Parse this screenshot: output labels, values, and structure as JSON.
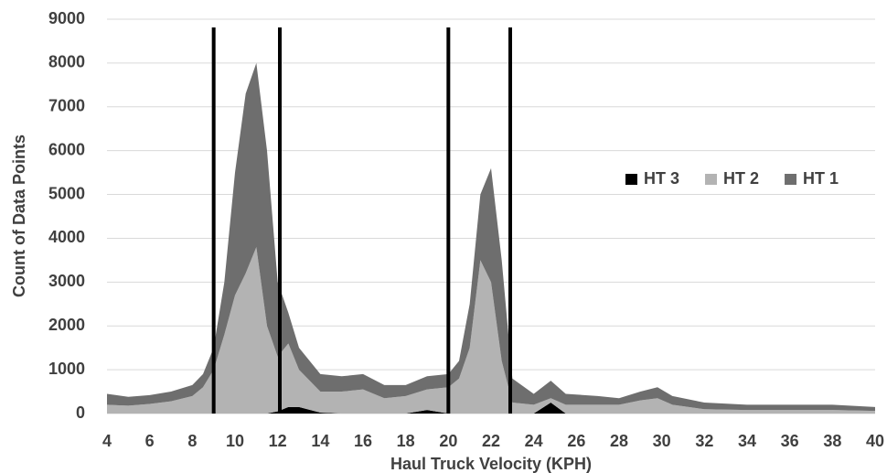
{
  "chart_data": {
    "type": "area",
    "stacked": true,
    "x_label": "Haul Truck Velocity (KPH)",
    "y_label": "Count of Data Points",
    "x": [
      4,
      5,
      6,
      7,
      8,
      8.5,
      9,
      9.5,
      10,
      10.5,
      11,
      11.5,
      12,
      12.5,
      13,
      14,
      15,
      16,
      17,
      18,
      19,
      20,
      20.5,
      21,
      21.5,
      22,
      22.5,
      23,
      24,
      24.8,
      25.5,
      27,
      28,
      29,
      29.8,
      30.5,
      32,
      34,
      36,
      38,
      40
    ],
    "series": [
      {
        "name": "HT 3",
        "color": "#000000",
        "values": [
          0,
          0,
          0,
          0,
          0,
          0,
          0,
          0,
          0,
          0,
          0,
          0,
          50,
          150,
          150,
          20,
          0,
          0,
          0,
          0,
          80,
          0,
          0,
          0,
          0,
          0,
          0,
          0,
          0,
          250,
          0,
          0,
          0,
          0,
          0,
          0,
          0,
          0,
          0,
          0,
          0
        ]
      },
      {
        "name": "HT 2",
        "color": "#b3b3b3",
        "values": [
          200,
          180,
          220,
          280,
          400,
          600,
          1000,
          1800,
          2700,
          3200,
          3800,
          2000,
          1250,
          1450,
          850,
          480,
          500,
          550,
          350,
          400,
          470,
          600,
          800,
          1500,
          3500,
          3000,
          1200,
          250,
          200,
          100,
          200,
          200,
          200,
          300,
          350,
          200,
          100,
          80,
          80,
          80,
          60
        ]
      },
      {
        "name": "HT 1",
        "color": "#6e6e6e",
        "values": [
          250,
          200,
          200,
          220,
          250,
          300,
          500,
          1200,
          2800,
          4100,
          4200,
          4000,
          1700,
          700,
          500,
          400,
          350,
          350,
          300,
          250,
          300,
          300,
          400,
          1000,
          1500,
          2600,
          2300,
          550,
          250,
          400,
          250,
          200,
          150,
          200,
          250,
          200,
          150,
          120,
          120,
          120,
          90
        ]
      }
    ],
    "vlines": [
      9,
      12.1,
      20,
      22.9
    ],
    "vline_color": "#000000",
    "xlim": [
      4,
      40
    ],
    "xticks": [
      4,
      6,
      8,
      10,
      12,
      14,
      16,
      18,
      20,
      22,
      24,
      26,
      28,
      30,
      32,
      34,
      36,
      38,
      40
    ],
    "ylim": [
      0,
      9000
    ],
    "yticks": [
      0,
      1000,
      2000,
      3000,
      4000,
      5000,
      6000,
      7000,
      8000,
      9000
    ],
    "grid": true,
    "legend": "right"
  }
}
